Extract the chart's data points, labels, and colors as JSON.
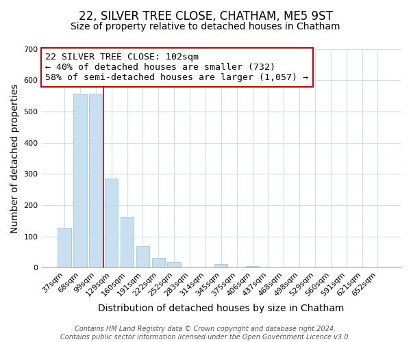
{
  "title": "22, SILVER TREE CLOSE, CHATHAM, ME5 9ST",
  "subtitle": "Size of property relative to detached houses in Chatham",
  "xlabel": "Distribution of detached houses by size in Chatham",
  "ylabel": "Number of detached properties",
  "categories": [
    "37sqm",
    "68sqm",
    "99sqm",
    "129sqm",
    "160sqm",
    "191sqm",
    "222sqm",
    "252sqm",
    "283sqm",
    "314sqm",
    "345sqm",
    "375sqm",
    "406sqm",
    "437sqm",
    "468sqm",
    "498sqm",
    "529sqm",
    "560sqm",
    "591sqm",
    "621sqm",
    "652sqm"
  ],
  "values": [
    128,
    556,
    556,
    285,
    163,
    68,
    32,
    19,
    0,
    0,
    11,
    0,
    5,
    0,
    0,
    0,
    0,
    0,
    0,
    0,
    0
  ],
  "bar_color": "#c8dff0",
  "bar_edge_color": "#a8c8e8",
  "vline_color": "#cc0000",
  "vline_x_index": 2,
  "annotation_text": "22 SILVER TREE CLOSE: 102sqm\n← 40% of detached houses are smaller (732)\n58% of semi-detached houses are larger (1,057) →",
  "annotation_box_color": "white",
  "annotation_box_edge_color": "#cc0000",
  "ylim": [
    0,
    700
  ],
  "yticks": [
    0,
    100,
    200,
    300,
    400,
    500,
    600,
    700
  ],
  "footer_line1": "Contains HM Land Registry data © Crown copyright and database right 2024.",
  "footer_line2": "Contains public sector information licensed under the Open Government Licence v3.0.",
  "title_fontsize": 12,
  "subtitle_fontsize": 10,
  "axis_label_fontsize": 10,
  "tick_fontsize": 8,
  "annotation_fontsize": 9.5,
  "footer_fontsize": 7,
  "background_color": "#ffffff",
  "grid_color": "#ccddf0"
}
